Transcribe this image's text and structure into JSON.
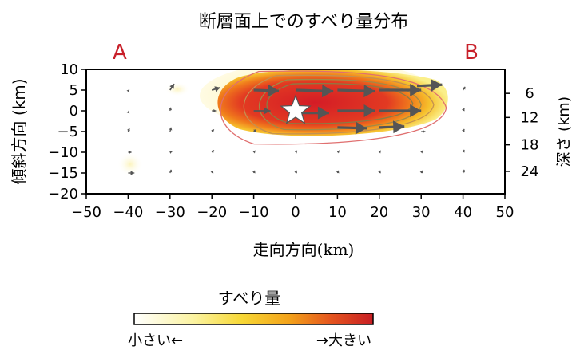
{
  "chart_data": {
    "type": "heatmap",
    "title": "断層面上でのすべり量分布",
    "xlabel_main": "走向方向",
    "xlabel_unit": "(km)",
    "ylabel": "傾斜方向 (km)",
    "ylabel_right": "深さ (km)",
    "xlim": [
      -50,
      50
    ],
    "ylim": [
      -20,
      10
    ],
    "x_ticks": [
      -50,
      -40,
      -30,
      -20,
      -10,
      0,
      10,
      20,
      30,
      40,
      50
    ],
    "y_ticks": [
      10,
      5,
      0,
      -5,
      -10,
      -15,
      -20
    ],
    "right_ticks": [
      {
        "y": 4.2,
        "label": "6"
      },
      {
        "y": -1.6,
        "label": "12"
      },
      {
        "y": -8.2,
        "label": "18"
      },
      {
        "y": -14.6,
        "label": "24"
      }
    ],
    "point_labels": [
      {
        "label": "A",
        "x": -42,
        "y": 12.5
      },
      {
        "label": "B",
        "x": 42,
        "y": 12.5
      }
    ],
    "epicenter": {
      "x": 0,
      "y": 0
    },
    "slip_contours": [
      {
        "level": 0.1,
        "x_range": [
          -20,
          36
        ],
        "y_range": [
          -8,
          9.5
        ]
      },
      {
        "level": 0.3,
        "x_range": [
          -14,
          33
        ],
        "y_range": [
          -5.5,
          8.5
        ]
      },
      {
        "level": 0.5,
        "x_range": [
          -10,
          30
        ],
        "y_range": [
          -4.5,
          7.5
        ]
      },
      {
        "level": 0.7,
        "x_range": [
          -8,
          28
        ],
        "y_range": [
          -3,
          6.5
        ]
      }
    ],
    "slip_vectors": [
      {
        "x": 0,
        "y": 5,
        "dx": 9,
        "dy": -0.3
      },
      {
        "x": 10,
        "y": 5,
        "dx": 9,
        "dy": -0.3
      },
      {
        "x": 20,
        "y": 5,
        "dx": 10,
        "dy": 0
      },
      {
        "x": 29,
        "y": 6,
        "dx": 6,
        "dy": 0.3
      },
      {
        "x": 0,
        "y": -0.5,
        "dx": 8,
        "dy": 0
      },
      {
        "x": 10,
        "y": 0,
        "dx": 9,
        "dy": 0
      },
      {
        "x": 20,
        "y": 0,
        "dx": 10,
        "dy": 0
      },
      {
        "x": 10,
        "y": -4,
        "dx": 7,
        "dy": -0.2
      },
      {
        "x": 20,
        "y": -4,
        "dx": 6,
        "dy": 0.2
      },
      {
        "x": -10,
        "y": 5,
        "dx": 6,
        "dy": -0.2
      },
      {
        "x": -10,
        "y": 0,
        "dx": 4,
        "dy": 0
      },
      {
        "x": -20,
        "y": 5,
        "dx": 2,
        "dy": 0.6
      },
      {
        "x": -30,
        "y": 5,
        "dx": 1,
        "dy": 1.5
      },
      {
        "x": -20,
        "y": 0,
        "dx": 1,
        "dy": 0
      },
      {
        "x": -30,
        "y": 0,
        "dx": 0.2,
        "dy": 0.8
      },
      {
        "x": -40,
        "y": 5,
        "dx": 0.2,
        "dy": -0.5
      },
      {
        "x": -40,
        "y": -0.5,
        "dx": 0.2,
        "dy": 0.5
      },
      {
        "x": -40,
        "y": -5,
        "dx": 0.3,
        "dy": 0.8
      },
      {
        "x": -40,
        "y": -10,
        "dx": 0.8,
        "dy": 0
      },
      {
        "x": -40,
        "y": -15,
        "dx": 1.5,
        "dy": 0
      },
      {
        "x": -30,
        "y": -5,
        "dx": 0.3,
        "dy": 1
      },
      {
        "x": -30,
        "y": -10,
        "dx": 0.5,
        "dy": 0.2
      },
      {
        "x": -30,
        "y": -15,
        "dx": 0.3,
        "dy": 0.8
      },
      {
        "x": -20,
        "y": -5,
        "dx": 0.5,
        "dy": 0.5
      },
      {
        "x": -20,
        "y": -10,
        "dx": 0.5,
        "dy": 0.5
      },
      {
        "x": -20,
        "y": -15,
        "dx": 0.3,
        "dy": 0.6
      },
      {
        "x": -10,
        "y": -5,
        "dx": 0.6,
        "dy": 0.5
      },
      {
        "x": -10,
        "y": -10,
        "dx": 0.4,
        "dy": 0.4
      },
      {
        "x": -10,
        "y": -15,
        "dx": 0.3,
        "dy": 0.6
      },
      {
        "x": 0,
        "y": -10,
        "dx": 0.4,
        "dy": 0.4
      },
      {
        "x": 0,
        "y": -15,
        "dx": 0.3,
        "dy": 0.6
      },
      {
        "x": 10,
        "y": -10,
        "dx": 0.5,
        "dy": 0.4
      },
      {
        "x": 10,
        "y": -15,
        "dx": 0.3,
        "dy": 0.6
      },
      {
        "x": 20,
        "y": -10,
        "dx": 0.4,
        "dy": 0.4
      },
      {
        "x": 20,
        "y": -15,
        "dx": 0.3,
        "dy": 0.6
      },
      {
        "x": 30,
        "y": -5,
        "dx": 1,
        "dy": 0
      },
      {
        "x": 30,
        "y": -10,
        "dx": 0.4,
        "dy": 0.4
      },
      {
        "x": 30,
        "y": -15,
        "dx": 0.3,
        "dy": 0.6
      },
      {
        "x": 40,
        "y": 5,
        "dx": 0.5,
        "dy": 0.8
      },
      {
        "x": 40,
        "y": 0,
        "dx": 0.3,
        "dy": 0.6
      },
      {
        "x": 40,
        "y": -5,
        "dx": 0.3,
        "dy": 0.6
      },
      {
        "x": 40,
        "y": -10,
        "dx": 0.3,
        "dy": 0.6
      },
      {
        "x": 40,
        "y": -15,
        "dx": 0.3,
        "dy": 0.8
      }
    ],
    "colorbar": {
      "title": "すべり量",
      "low_label": "小さい←",
      "high_label": "→大きい",
      "colors": [
        "#ffffff",
        "#fbf3a0",
        "#f7d836",
        "#f3a21a",
        "#e5561e",
        "#c81e24"
      ]
    }
  }
}
